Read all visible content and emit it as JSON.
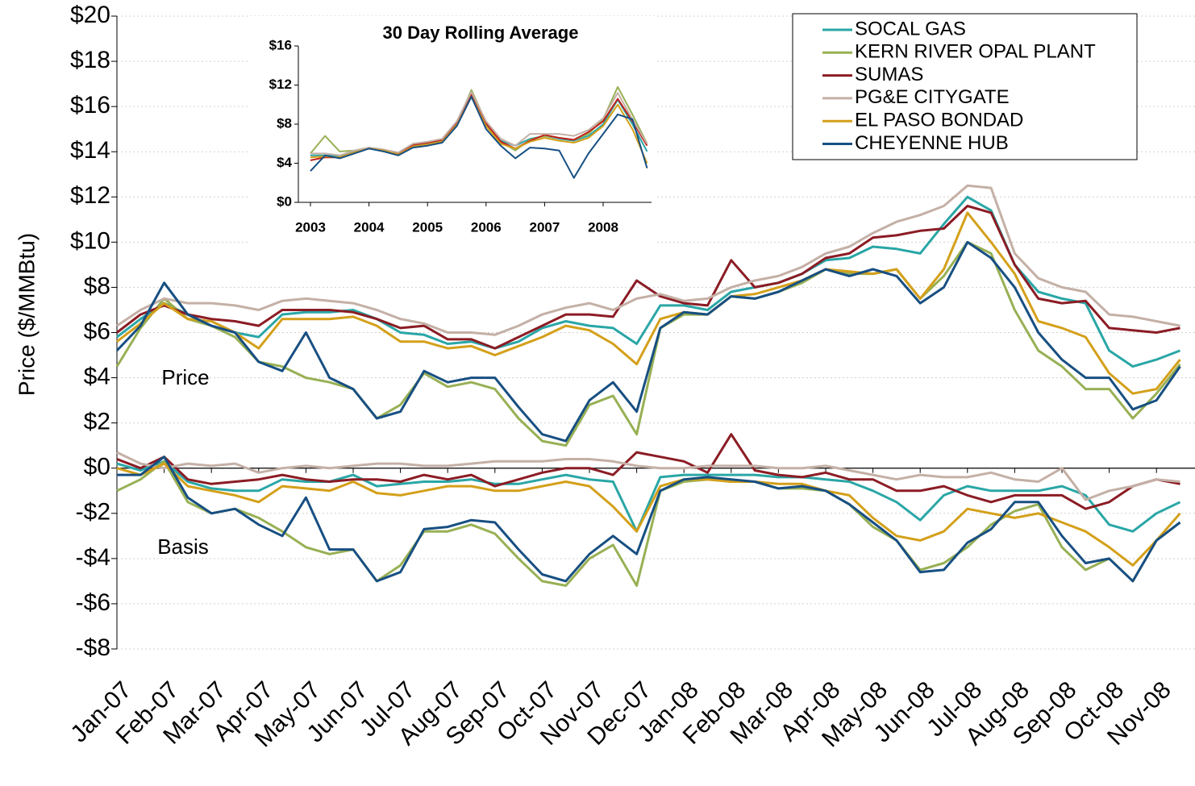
{
  "chart_data": [
    {
      "type": "line",
      "y_label": "Price ($/MMBtu)",
      "annotations": [
        "Price",
        "Basis"
      ],
      "legend": "upper right",
      "grid": true,
      "categories": [
        "Jan-07",
        null,
        "Feb-07",
        null,
        "Mar-07",
        null,
        "Apr-07",
        null,
        "May-07",
        null,
        "Jun-07",
        null,
        "Jul-07",
        null,
        "Aug-07",
        null,
        "Sep-07",
        null,
        "Oct-07",
        null,
        "Nov-07",
        null,
        "Dec-07",
        null,
        "Jan-08",
        null,
        "Feb-08",
        null,
        "Mar-08",
        null,
        "Apr-08",
        null,
        "May-08",
        null,
        "Jun-08",
        null,
        "Jul-08",
        null,
        "Aug-08",
        null,
        "Sep-08",
        null,
        "Oct-08",
        null,
        "Nov-08",
        null
      ],
      "ylim": [
        -8,
        20
      ],
      "yticks": [
        {
          "value": 20,
          "label": "$20"
        },
        {
          "value": 18,
          "label": "$18"
        },
        {
          "value": 16,
          "label": "$16"
        },
        {
          "value": 14,
          "label": "$14"
        },
        {
          "value": 12,
          "label": "$12"
        },
        {
          "value": 10,
          "label": "$10"
        },
        {
          "value": 8,
          "label": "$8"
        },
        {
          "value": 6,
          "label": "$6"
        },
        {
          "value": 4,
          "label": "$4"
        },
        {
          "value": 2,
          "label": "$2"
        },
        {
          "value": 0,
          "label": "$0"
        },
        {
          "value": -2,
          "label": "-$2"
        },
        {
          "value": -4,
          "label": "-$4"
        },
        {
          "value": -6,
          "label": "-$6"
        },
        {
          "value": -8,
          "label": "-$8"
        }
      ],
      "series": [
        {
          "name": "SOCAL GAS",
          "color": "#2aa6a6",
          "values": [
            5.8,
            6.6,
            7.3,
            6.8,
            6.3,
            6.0,
            5.8,
            6.8,
            6.9,
            6.9,
            7.0,
            6.6,
            6.0,
            5.9,
            5.5,
            5.6,
            5.3,
            5.6,
            6.2,
            6.5,
            6.3,
            6.2,
            5.5,
            7.2,
            7.2,
            7.0,
            7.8,
            8.0,
            8.2,
            8.6,
            9.2,
            9.3,
            9.8,
            9.7,
            9.5,
            10.8,
            12.0,
            11.4,
            9.0,
            7.8,
            7.5,
            7.3,
            5.2,
            4.5,
            4.8,
            5.2
          ],
          "basis": [
            0.2,
            -0.1,
            0.3,
            -0.6,
            -0.9,
            -1.0,
            -1.0,
            -0.5,
            -0.6,
            -0.6,
            -0.3,
            -0.8,
            -0.7,
            -0.6,
            -0.6,
            -0.5,
            -0.7,
            -0.7,
            -0.5,
            -0.3,
            -0.5,
            -0.6,
            -2.8,
            -0.4,
            -0.3,
            -0.3,
            -0.3,
            -0.3,
            -0.4,
            -0.4,
            -0.5,
            -0.6,
            -1.0,
            -1.5,
            -2.3,
            -1.2,
            -0.8,
            -1.0,
            -1.0,
            -1.0,
            -0.8,
            -1.2,
            -2.5,
            -2.8,
            -2.0,
            -1.5
          ]
        },
        {
          "name": "KERN RIVER OPAL PLANT",
          "color": "#98b054",
          "values": [
            4.5,
            6.2,
            7.5,
            6.6,
            6.3,
            5.8,
            4.7,
            4.5,
            4.0,
            3.8,
            3.5,
            2.2,
            2.8,
            4.2,
            3.6,
            3.8,
            3.5,
            2.2,
            1.2,
            1.0,
            2.8,
            3.2,
            1.5,
            6.2,
            6.8,
            6.8,
            7.6,
            7.5,
            7.8,
            8.2,
            8.8,
            8.6,
            8.6,
            8.8,
            7.5,
            8.5,
            10.0,
            9.5,
            7.0,
            5.2,
            4.5,
            3.5,
            3.5,
            2.2,
            3.3,
            4.6
          ],
          "basis": [
            -1.0,
            -0.5,
            0.3,
            -1.5,
            -2.0,
            -1.8,
            -2.2,
            -2.8,
            -3.5,
            -3.8,
            -3.6,
            -5.0,
            -4.3,
            -2.8,
            -2.8,
            -2.5,
            -2.9,
            -4.0,
            -5.0,
            -5.2,
            -4.0,
            -3.4,
            -5.2,
            -1.0,
            -0.6,
            -0.5,
            -0.6,
            -0.6,
            -0.9,
            -0.9,
            -1.0,
            -1.6,
            -2.6,
            -3.2,
            -4.5,
            -4.2,
            -3.5,
            -2.5,
            -1.9,
            -1.6,
            -3.5,
            -4.5,
            -4.0,
            -5.0,
            -3.2,
            -2.4
          ]
        },
        {
          "name": "SUMAS",
          "color": "#8b1c24",
          "values": [
            6.0,
            6.8,
            7.2,
            6.8,
            6.6,
            6.5,
            6.3,
            7.0,
            7.0,
            7.0,
            6.9,
            6.6,
            6.2,
            6.3,
            5.7,
            5.7,
            5.3,
            5.8,
            6.3,
            6.8,
            6.8,
            6.7,
            8.3,
            7.6,
            7.3,
            7.2,
            9.2,
            8.0,
            8.2,
            8.6,
            9.3,
            9.5,
            10.2,
            10.3,
            10.5,
            10.6,
            11.6,
            11.3,
            9.0,
            7.5,
            7.3,
            7.4,
            6.2,
            6.1,
            6.0,
            6.2
          ],
          "basis": [
            0.4,
            0.0,
            0.5,
            -0.5,
            -0.7,
            -0.6,
            -0.5,
            -0.3,
            -0.5,
            -0.6,
            -0.5,
            -0.5,
            -0.6,
            -0.3,
            -0.5,
            -0.3,
            -0.8,
            -0.5,
            -0.2,
            0.0,
            0.0,
            -0.3,
            0.7,
            0.5,
            0.3,
            -0.2,
            1.5,
            -0.1,
            -0.3,
            -0.4,
            -0.2,
            -0.5,
            -0.5,
            -1.0,
            -1.0,
            -0.8,
            -1.2,
            -1.5,
            -1.2,
            -1.2,
            -1.2,
            -1.8,
            -1.5,
            -0.8,
            -0.5,
            -0.7
          ]
        },
        {
          "name": "PG&E CITYGATE",
          "color": "#c4b0a6",
          "values": [
            6.3,
            7.0,
            7.5,
            7.3,
            7.3,
            7.2,
            7.0,
            7.4,
            7.5,
            7.4,
            7.3,
            7.0,
            6.6,
            6.4,
            6.0,
            6.0,
            5.9,
            6.3,
            6.8,
            7.1,
            7.3,
            7.0,
            7.5,
            7.7,
            7.4,
            7.5,
            8.0,
            8.3,
            8.5,
            8.9,
            9.5,
            9.8,
            10.4,
            10.9,
            11.2,
            11.6,
            12.5,
            12.4,
            9.5,
            8.4,
            8.0,
            7.8,
            6.8,
            6.7,
            6.5,
            6.3
          ],
          "basis": [
            0.7,
            0.2,
            0.0,
            0.2,
            0.1,
            0.2,
            -0.2,
            0.0,
            0.1,
            0.0,
            0.1,
            0.2,
            0.2,
            0.1,
            0.1,
            0.2,
            0.3,
            0.3,
            0.3,
            0.4,
            0.4,
            0.3,
            0.1,
            0.0,
            0.0,
            0.1,
            0.1,
            0.1,
            0.0,
            0.0,
            0.1,
            -0.1,
            -0.3,
            -0.5,
            -0.3,
            -0.4,
            -0.4,
            -0.2,
            -0.5,
            -0.6,
            0.0,
            -1.4,
            -1.0,
            -0.8,
            -0.5,
            -0.6
          ]
        },
        {
          "name": "EL PASO BONDAD",
          "color": "#d4a01a",
          "values": [
            5.6,
            6.4,
            7.3,
            6.6,
            6.5,
            6.0,
            5.3,
            6.6,
            6.6,
            6.6,
            6.7,
            6.3,
            5.6,
            5.6,
            5.3,
            5.4,
            5.0,
            5.4,
            5.8,
            6.3,
            6.1,
            5.5,
            4.6,
            6.6,
            6.9,
            6.8,
            7.6,
            7.7,
            8.0,
            8.3,
            8.8,
            8.7,
            8.6,
            8.8,
            7.5,
            8.8,
            11.3,
            10.0,
            8.6,
            6.5,
            6.2,
            5.8,
            4.2,
            3.3,
            3.5,
            4.8
          ],
          "basis": [
            0.0,
            -0.3,
            0.2,
            -0.8,
            -1.0,
            -1.2,
            -1.5,
            -0.8,
            -0.9,
            -1.0,
            -0.6,
            -1.1,
            -1.2,
            -1.0,
            -0.8,
            -0.8,
            -1.0,
            -1.0,
            -0.8,
            -0.6,
            -0.8,
            -1.7,
            -2.8,
            -0.8,
            -0.5,
            -0.5,
            -0.6,
            -0.6,
            -0.7,
            -0.7,
            -1.0,
            -1.2,
            -2.2,
            -3.0,
            -3.2,
            -2.8,
            -1.8,
            -2.0,
            -2.2,
            -2.0,
            -2.4,
            -2.8,
            -3.5,
            -4.3,
            -3.2,
            -2.0
          ]
        },
        {
          "name": "CHEYENNE HUB",
          "color": "#174f82",
          "values": [
            5.2,
            6.3,
            8.2,
            6.8,
            6.3,
            6.0,
            4.7,
            4.3,
            6.0,
            4.0,
            3.5,
            2.2,
            2.5,
            4.3,
            3.8,
            4.0,
            4.0,
            2.7,
            1.5,
            1.2,
            3.0,
            3.8,
            2.5,
            6.2,
            6.9,
            6.8,
            7.6,
            7.5,
            7.8,
            8.3,
            8.8,
            8.5,
            8.8,
            8.5,
            7.3,
            8.0,
            10.0,
            9.3,
            8.0,
            6.0,
            4.8,
            4.0,
            4.0,
            2.6,
            3.0,
            4.5
          ],
          "basis": [
            -0.3,
            -0.3,
            0.5,
            -1.3,
            -2.0,
            -1.8,
            -2.5,
            -3.0,
            -1.3,
            -3.6,
            -3.6,
            -5.0,
            -4.6,
            -2.7,
            -2.6,
            -2.3,
            -2.4,
            -3.6,
            -4.7,
            -5.0,
            -3.8,
            -3.0,
            -3.8,
            -1.0,
            -0.5,
            -0.4,
            -0.5,
            -0.6,
            -0.9,
            -0.8,
            -1.0,
            -1.6,
            -2.4,
            -3.2,
            -4.6,
            -4.5,
            -3.3,
            -2.7,
            -1.5,
            -1.5,
            -3.0,
            -4.2,
            -4.0,
            -5.0,
            -3.2,
            -2.4
          ]
        }
      ]
    },
    {
      "type": "line",
      "title": "30 Day Rolling Average",
      "categories": [
        "2003",
        null,
        null,
        null,
        "2004",
        null,
        null,
        null,
        "2005",
        null,
        null,
        null,
        "2006",
        null,
        null,
        null,
        "2007",
        null,
        null,
        null,
        "2008",
        null,
        null,
        null
      ],
      "ylim": [
        0,
        16
      ],
      "yticks": [
        {
          "value": 0,
          "label": "$0"
        },
        {
          "value": 4,
          "label": "$4"
        },
        {
          "value": 8,
          "label": "$8"
        },
        {
          "value": 12,
          "label": "$12"
        },
        {
          "value": 16,
          "label": "$16"
        }
      ],
      "series": [
        {
          "color": "#2aa6a6",
          "values": [
            4.8,
            4.8,
            4.7,
            5.2,
            5.5,
            5.3,
            5.0,
            5.8,
            6.0,
            6.3,
            8.0,
            11.0,
            8.0,
            6.3,
            5.8,
            6.5,
            6.8,
            6.5,
            6.3,
            6.8,
            8.0,
            10.5,
            8.0,
            5.2
          ]
        },
        {
          "color": "#98b054",
          "values": [
            5.0,
            6.8,
            5.2,
            5.3,
            5.6,
            5.4,
            5.0,
            5.8,
            6.0,
            6.3,
            8.0,
            11.5,
            8.2,
            6.2,
            5.3,
            6.4,
            6.8,
            6.6,
            6.4,
            7.0,
            8.5,
            11.8,
            9.0,
            6.0
          ]
        },
        {
          "color": "#c0201a",
          "values": [
            4.3,
            4.6,
            4.6,
            5.1,
            5.5,
            5.3,
            5.0,
            5.9,
            6.1,
            6.4,
            8.2,
            11.0,
            8.1,
            6.2,
            5.5,
            6.3,
            6.9,
            6.6,
            6.4,
            7.2,
            8.3,
            10.6,
            8.3,
            5.8
          ]
        },
        {
          "color": "#c4b0a6",
          "values": [
            5.0,
            5.0,
            4.8,
            5.3,
            5.6,
            5.4,
            5.1,
            6.0,
            6.2,
            6.5,
            8.3,
            11.3,
            8.3,
            6.5,
            5.8,
            7.0,
            7.0,
            7.0,
            6.8,
            7.4,
            8.6,
            11.2,
            8.5,
            6.0
          ]
        },
        {
          "color": "#d4a01a",
          "values": [
            4.6,
            4.7,
            4.6,
            5.1,
            5.5,
            5.3,
            4.9,
            5.7,
            5.9,
            6.2,
            7.9,
            10.8,
            7.8,
            6.0,
            5.5,
            6.2,
            6.6,
            6.3,
            6.1,
            6.6,
            7.8,
            10.0,
            7.5,
            4.0
          ]
        },
        {
          "color": "#174f82",
          "values": [
            3.2,
            4.8,
            4.5,
            5.0,
            5.5,
            5.2,
            4.8,
            5.6,
            5.8,
            6.1,
            7.8,
            10.8,
            7.5,
            5.8,
            4.5,
            5.6,
            5.5,
            5.3,
            2.5,
            5.0,
            7.0,
            9.0,
            8.5,
            3.5
          ]
        }
      ]
    }
  ]
}
